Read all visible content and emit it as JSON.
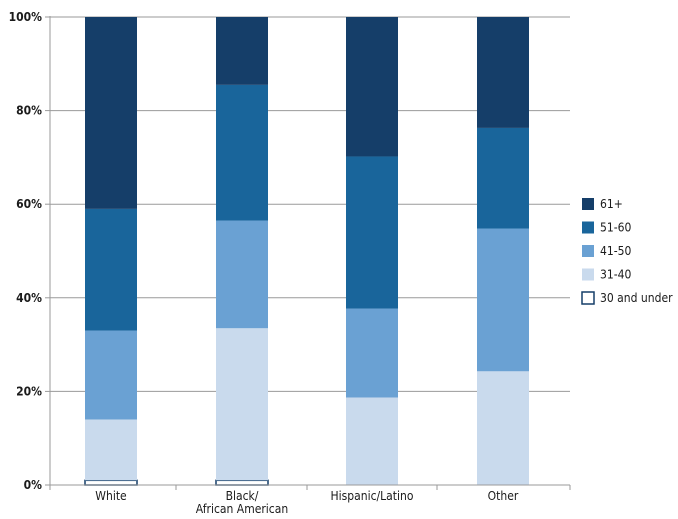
{
  "chart_data": {
    "type": "bar",
    "stacked": true,
    "title": "",
    "xlabel": "",
    "ylabel": "",
    "ylim": [
      0,
      100
    ],
    "yticks": [
      "0%",
      "20%",
      "40%",
      "60%",
      "80%",
      "100%"
    ],
    "ytick_values": [
      0,
      20,
      40,
      60,
      80,
      100
    ],
    "categories": [
      "White",
      "Black/\nAfrican American",
      "Hispanic/Latino",
      "Other"
    ],
    "series": [
      {
        "name": "30 and under",
        "color": "#ffffff",
        "values": [
          1,
          1,
          0,
          0
        ]
      },
      {
        "name": "31-40",
        "color": "#c9daed",
        "values": [
          13,
          32.5,
          18.7,
          24.3
        ]
      },
      {
        "name": "41-50",
        "color": "#6aa1d3",
        "values": [
          19,
          23,
          19,
          30.5
        ]
      },
      {
        "name": "51-60",
        "color": "#19659b",
        "values": [
          26,
          29,
          32.5,
          21.5
        ]
      },
      {
        "name": "61+",
        "color": "#153e69",
        "values": [
          41,
          14.5,
          29.8,
          23.7
        ]
      }
    ],
    "legend": {
      "placement": "right",
      "order": [
        "61+",
        "51-60",
        "41-50",
        "31-40",
        "30 and under"
      ]
    },
    "grid": true
  }
}
